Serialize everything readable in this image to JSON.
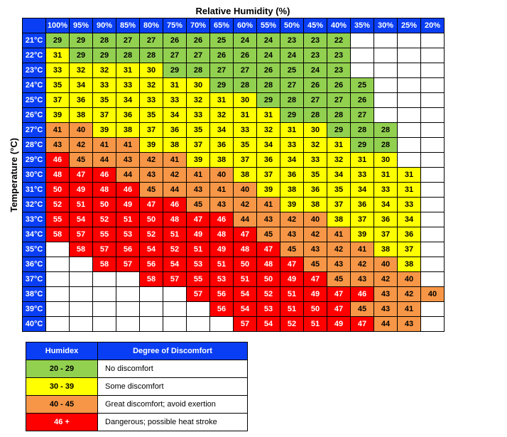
{
  "axis": {
    "x_label": "Relative Humidity (%)",
    "y_label": "Temperature (°C)"
  },
  "colors": {
    "header_bg": "#0a3ef5",
    "header_fg": "#ffffff",
    "empty_bg": "#ffffff",
    "border": "#000000"
  },
  "bands": [
    {
      "min": 20,
      "max": 29,
      "color": "#92d050",
      "text": "#000000"
    },
    {
      "min": 30,
      "max": 39,
      "color": "#ffff00",
      "text": "#000000"
    },
    {
      "min": 40,
      "max": 45,
      "color": "#f79646",
      "text": "#000000"
    },
    {
      "min": 46,
      "max": 999,
      "color": "#ff0000",
      "text": "#ffffff"
    }
  ],
  "humidity_headers": [
    "100%",
    "95%",
    "90%",
    "85%",
    "80%",
    "75%",
    "70%",
    "65%",
    "60%",
    "55%",
    "50%",
    "45%",
    "40%",
    "35%",
    "30%",
    "25%",
    "20%"
  ],
  "rows": [
    {
      "t": "21°C",
      "v": [
        29,
        29,
        28,
        27,
        27,
        26,
        26,
        25,
        24,
        24,
        23,
        23,
        22,
        null,
        null,
        null,
        null
      ]
    },
    {
      "t": "22°C",
      "v": [
        31,
        29,
        29,
        28,
        28,
        27,
        27,
        26,
        26,
        24,
        24,
        23,
        23,
        null,
        null,
        null,
        null
      ]
    },
    {
      "t": "23°C",
      "v": [
        33,
        32,
        32,
        31,
        30,
        29,
        28,
        27,
        27,
        26,
        25,
        24,
        23,
        null,
        null,
        null,
        null
      ]
    },
    {
      "t": "24°C",
      "v": [
        35,
        34,
        33,
        33,
        32,
        31,
        30,
        29,
        28,
        28,
        27,
        26,
        26,
        25,
        null,
        null,
        null
      ]
    },
    {
      "t": "25°C",
      "v": [
        37,
        36,
        35,
        34,
        33,
        33,
        32,
        31,
        30,
        29,
        28,
        27,
        27,
        26,
        null,
        null,
        null
      ]
    },
    {
      "t": "26°C",
      "v": [
        39,
        38,
        37,
        36,
        35,
        34,
        33,
        32,
        31,
        31,
        29,
        28,
        28,
        27,
        null,
        null,
        null
      ]
    },
    {
      "t": "27°C",
      "v": [
        41,
        40,
        39,
        38,
        37,
        36,
        35,
        34,
        33,
        32,
        31,
        30,
        29,
        28,
        28,
        null,
        null
      ]
    },
    {
      "t": "28°C",
      "v": [
        43,
        42,
        41,
        41,
        39,
        38,
        37,
        36,
        35,
        34,
        33,
        32,
        31,
        29,
        28,
        null,
        null
      ]
    },
    {
      "t": "29°C",
      "v": [
        46,
        45,
        44,
        43,
        42,
        41,
        39,
        38,
        37,
        36,
        34,
        33,
        32,
        31,
        30,
        null,
        null
      ]
    },
    {
      "t": "30°C",
      "v": [
        48,
        47,
        46,
        44,
        43,
        42,
        41,
        40,
        38,
        37,
        36,
        35,
        34,
        33,
        31,
        31,
        null
      ]
    },
    {
      "t": "31°C",
      "v": [
        50,
        49,
        48,
        46,
        45,
        44,
        43,
        41,
        40,
        39,
        38,
        36,
        35,
        34,
        33,
        31,
        null
      ]
    },
    {
      "t": "32°C",
      "v": [
        52,
        51,
        50,
        49,
        47,
        46,
        45,
        43,
        42,
        41,
        39,
        38,
        37,
        36,
        34,
        33,
        null
      ]
    },
    {
      "t": "33°C",
      "v": [
        55,
        54,
        52,
        51,
        50,
        48,
        47,
        46,
        44,
        43,
        42,
        40,
        38,
        37,
        36,
        34,
        null
      ]
    },
    {
      "t": "34°C",
      "v": [
        58,
        57,
        55,
        53,
        52,
        51,
        49,
        48,
        47,
        45,
        43,
        42,
        41,
        39,
        37,
        36,
        null
      ]
    },
    {
      "t": "35°C",
      "v": [
        null,
        58,
        57,
        56,
        54,
        52,
        51,
        49,
        48,
        47,
        45,
        43,
        42,
        41,
        38,
        37,
        null
      ]
    },
    {
      "t": "36°C",
      "v": [
        null,
        null,
        58,
        57,
        56,
        54,
        53,
        51,
        50,
        48,
        47,
        45,
        43,
        42,
        40,
        38,
        null
      ]
    },
    {
      "t": "37°C",
      "v": [
        null,
        null,
        null,
        null,
        58,
        57,
        55,
        53,
        51,
        50,
        49,
        47,
        45,
        43,
        42,
        40,
        null
      ]
    },
    {
      "t": "38°C",
      "v": [
        null,
        null,
        null,
        null,
        null,
        null,
        57,
        56,
        54,
        52,
        51,
        49,
        47,
        46,
        43,
        42,
        40
      ]
    },
    {
      "t": "39°C",
      "v": [
        null,
        null,
        null,
        null,
        null,
        null,
        null,
        56,
        54,
        53,
        51,
        50,
        47,
        45,
        43,
        41,
        null
      ]
    },
    {
      "t": "40°C",
      "v": [
        null,
        null,
        null,
        null,
        null,
        null,
        null,
        null,
        57,
        54,
        52,
        51,
        49,
        47,
        44,
        43,
        null
      ]
    }
  ],
  "legend": {
    "headers": [
      "Humidex",
      "Degree of Discomfort"
    ],
    "rows": [
      {
        "range": "20 - 29",
        "desc": "No discomfort",
        "band": 0
      },
      {
        "range": "30 - 39",
        "desc": "Some discomfort",
        "band": 1
      },
      {
        "range": "40 - 45",
        "desc": "Great discomfort; avoid exertion",
        "band": 2
      },
      {
        "range": "46 +",
        "desc": "Dangerous; possible heat stroke",
        "band": 3
      }
    ]
  }
}
